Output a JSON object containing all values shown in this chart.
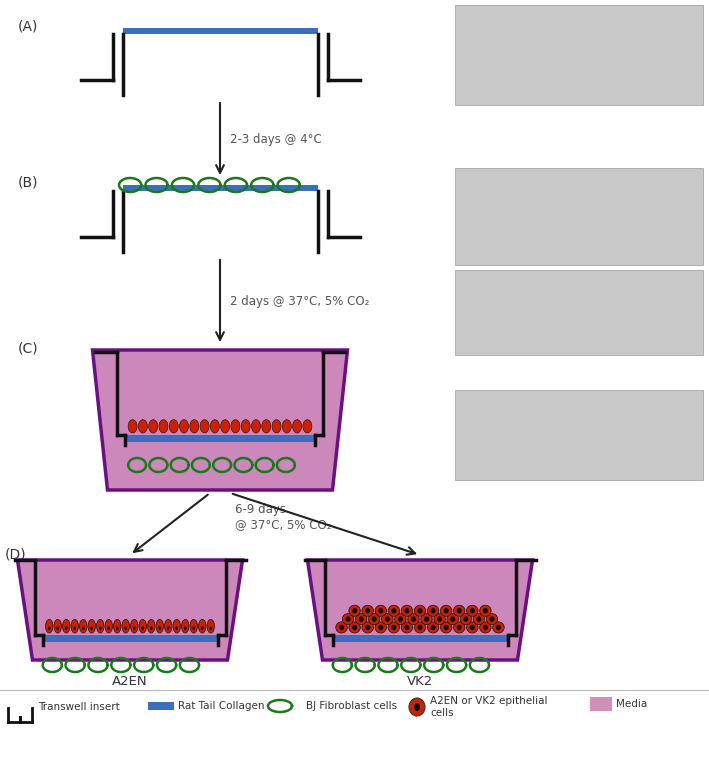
{
  "fig_width": 7.09,
  "fig_height": 7.81,
  "dpi": 100,
  "bg_color": "#ffffff",
  "transwell_color": "#111111",
  "collagen_color": "#3a6fbd",
  "fibroblast_color": "#1a7a1a",
  "epithelial_red": "#cc2000",
  "media_color": "#d090b8",
  "well_fill_color": "#cc88bb",
  "well_stroke_color": "#6a1080",
  "arrow_color": "#333333",
  "label_color": "#555555",
  "label_A": "(A)",
  "label_B": "(B)",
  "label_C": "(C)",
  "label_D": "(D)",
  "text_AB": "2-3 days @ 4°C",
  "text_BC": "2 days @ 37°C, 5% CO₂",
  "text_CD": "6-9 days\n@ 37°C, 5% CO₂",
  "label_A2EN": "A2EN",
  "label_VK2": "VK2",
  "legend_transwell": "Transwell insert",
  "legend_collagen": "Rat Tail Collagen",
  "legend_fibroblast": "BJ Fibroblast cells",
  "legend_epithelial": "A2EN or VK2 epithelial\ncells",
  "legend_media": "Media"
}
